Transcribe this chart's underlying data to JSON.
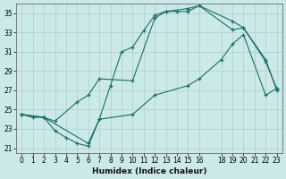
{
  "title": "",
  "xlabel": "Humidex (Indice chaleur)",
  "xlim": [
    -0.5,
    23.5
  ],
  "ylim": [
    20.5,
    36.0
  ],
  "xticks": [
    0,
    1,
    2,
    3,
    4,
    5,
    6,
    7,
    8,
    9,
    10,
    11,
    12,
    13,
    14,
    15,
    16,
    18,
    19,
    20,
    21,
    22,
    23
  ],
  "yticks": [
    21,
    23,
    25,
    27,
    29,
    31,
    33,
    35
  ],
  "bg_color": "#cce9ea",
  "grid_color": "#b0cccc",
  "line_color": "#1a6e60",
  "lines": [
    {
      "x": [
        0,
        1,
        2,
        3,
        4,
        5,
        6,
        7,
        8,
        9,
        10,
        11,
        12,
        13,
        14,
        15,
        16,
        19,
        20,
        22,
        23
      ],
      "y": [
        24.5,
        24.2,
        24.2,
        22.8,
        22.1,
        21.5,
        21.2,
        24.0,
        27.5,
        31.0,
        31.5,
        33.2,
        34.8,
        35.2,
        35.2,
        35.2,
        35.8,
        33.3,
        33.5,
        30.2,
        27.0
      ]
    },
    {
      "x": [
        0,
        2,
        3,
        5,
        6,
        7,
        10,
        12,
        13,
        15,
        16,
        19,
        20,
        22,
        23
      ],
      "y": [
        24.5,
        24.2,
        23.8,
        25.8,
        26.5,
        28.2,
        28.0,
        34.5,
        35.2,
        35.5,
        35.8,
        34.2,
        33.5,
        30.0,
        27.2
      ]
    },
    {
      "x": [
        0,
        2,
        6,
        7,
        10,
        12,
        15,
        16,
        18,
        19,
        20,
        22,
        23
      ],
      "y": [
        24.5,
        24.2,
        21.5,
        24.0,
        24.5,
        26.5,
        27.5,
        28.2,
        30.2,
        31.8,
        32.8,
        26.5,
        27.2
      ]
    }
  ],
  "tick_labelsize": 5.5,
  "xlabel_fontsize": 6.5
}
